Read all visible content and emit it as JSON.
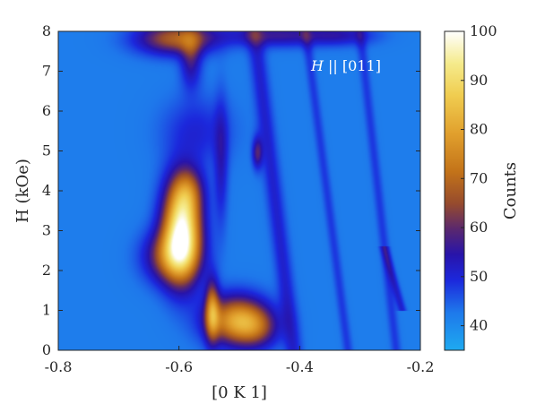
{
  "chart_data": {
    "type": "heatmap",
    "title": "",
    "xlabel": "[0 K 1]",
    "ylabel": "H (kOe)",
    "xlim": [
      -0.8,
      -0.2
    ],
    "ylim": [
      0,
      8
    ],
    "x_ticks": [
      "-0.8",
      "-0.6",
      "-0.4",
      "-0.2"
    ],
    "y_ticks": [
      "0",
      "1",
      "2",
      "3",
      "4",
      "5",
      "6",
      "7",
      "8"
    ],
    "annotation": {
      "italic": "H",
      "rest": " || [011]"
    },
    "colorbar": {
      "label": "Counts",
      "range": [
        35,
        100
      ],
      "ticks": [
        "40",
        "50",
        "60",
        "70",
        "80",
        "90",
        "100"
      ]
    },
    "background_level": 42,
    "peaks": [
      {
        "x": -0.595,
        "y": 3.0,
        "sx": 0.022,
        "sy": 0.85,
        "amp": 56
      },
      {
        "x": -0.615,
        "y": 2.35,
        "sx": 0.03,
        "sy": 0.45,
        "amp": 22
      },
      {
        "x": -0.585,
        "y": 4.0,
        "sx": 0.018,
        "sy": 0.4,
        "amp": 14
      },
      {
        "x": -0.505,
        "y": 0.75,
        "sx": 0.035,
        "sy": 0.42,
        "amp": 36
      },
      {
        "x": -0.545,
        "y": 1.0,
        "sx": 0.008,
        "sy": 0.55,
        "amp": 26
      },
      {
        "x": -0.47,
        "y": 0.55,
        "sx": 0.025,
        "sy": 0.35,
        "amp": 14
      },
      {
        "x": -0.605,
        "y": 7.82,
        "sx": 0.045,
        "sy": 0.28,
        "amp": 26
      },
      {
        "x": -0.58,
        "y": 7.3,
        "sx": 0.012,
        "sy": 0.5,
        "amp": 14
      },
      {
        "x": -0.47,
        "y": 4.95,
        "sx": 0.006,
        "sy": 0.28,
        "amp": 16
      },
      {
        "x": -0.44,
        "y": 7.9,
        "sx": 0.06,
        "sy": 0.2,
        "amp": 14
      },
      {
        "x": -0.33,
        "y": 7.9,
        "sx": 0.04,
        "sy": 0.18,
        "amp": 10
      },
      {
        "x": -0.53,
        "y": 4.7,
        "sx": 0.008,
        "sy": 1.1,
        "amp": 10
      },
      {
        "x": -0.57,
        "y": 5.5,
        "sx": 0.04,
        "sy": 0.6,
        "amp": 8
      }
    ],
    "ridges": [
      {
        "x0": -0.475,
        "y0": 8.0,
        "x1": -0.41,
        "y1": 0.0,
        "w": 0.01,
        "amp": 9
      },
      {
        "x0": -0.39,
        "y0": 8.0,
        "x1": -0.32,
        "y1": 0.0,
        "w": 0.006,
        "amp": 6
      },
      {
        "x0": -0.3,
        "y0": 8.0,
        "x1": -0.24,
        "y1": 0.0,
        "w": 0.006,
        "amp": 6
      },
      {
        "x0": -0.26,
        "y0": 2.6,
        "x1": -0.23,
        "y1": 1.0,
        "w": 0.005,
        "amp": 9
      }
    ]
  }
}
